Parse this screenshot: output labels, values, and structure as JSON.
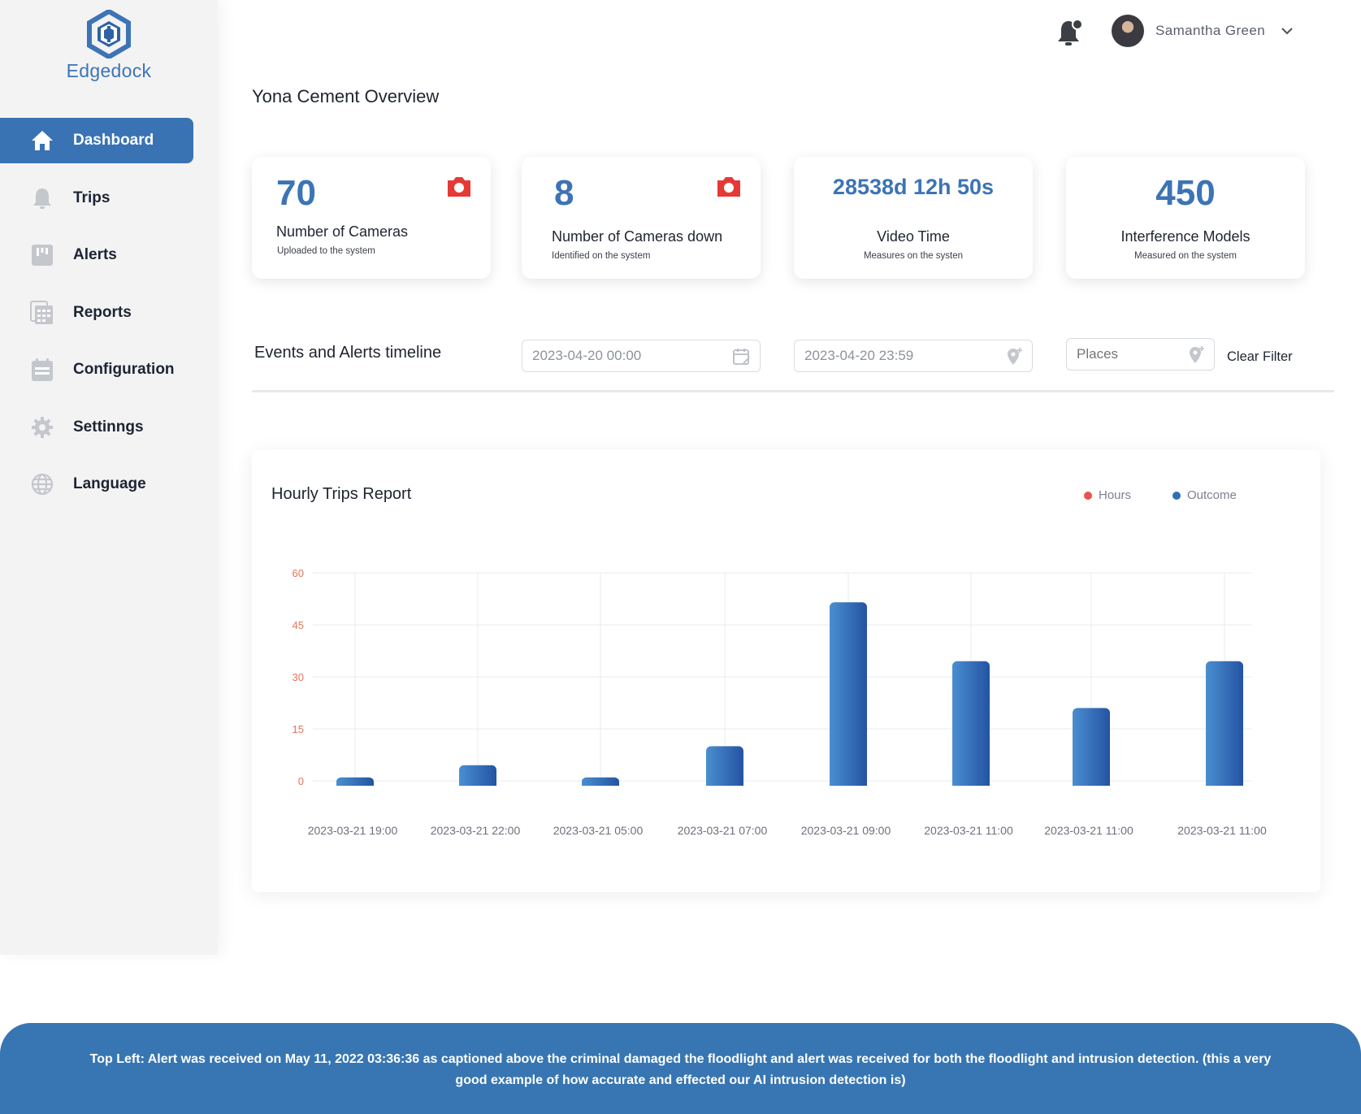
{
  "brand": {
    "name": "Edgedock",
    "accent": "#3a73b4",
    "logo_icon": "edgedock-cube-logo"
  },
  "sidebar": {
    "items": [
      {
        "label": "Dashboard",
        "icon": "home-icon",
        "active": true
      },
      {
        "label": "Trips",
        "icon": "bell-icon",
        "active": false
      },
      {
        "label": "Alerts",
        "icon": "alert-board-icon",
        "active": false
      },
      {
        "label": "Reports",
        "icon": "reports-icon",
        "active": false
      },
      {
        "label": "Configuration",
        "icon": "calendar-config-icon",
        "active": false
      },
      {
        "label": "Settinngs",
        "icon": "gear-icon",
        "active": false
      },
      {
        "label": "Language",
        "icon": "globe-icon",
        "active": false
      }
    ]
  },
  "header": {
    "user_name": "Samantha Green"
  },
  "page": {
    "title": "Yona Cement Overview"
  },
  "stats": [
    {
      "value": "70",
      "label": "Number of Cameras",
      "sub": "Uploaded to the system",
      "icon": "camera-icon"
    },
    {
      "value": "8",
      "label": "Number of Cameras down",
      "sub": "Identified on the system",
      "icon": "camera-icon"
    },
    {
      "value": "28538d 12h 50s",
      "label": "Video Time",
      "sub": "Measures on the systen"
    },
    {
      "value": "450",
      "label": "Interference Models",
      "sub": "Measured on the system"
    }
  ],
  "filters": {
    "title": "Events and Alerts timeline",
    "start_value": "2023-04-20 00:00",
    "end_value": "2023-04-20 23:59",
    "places_placeholder": "Places",
    "clear_label": "Clear Filter"
  },
  "chart_data": {
    "type": "bar",
    "title": "Hourly Trips Report",
    "categories": [
      "2023-03-21 19:00",
      "2023-03-21 22:00",
      "2023-03-21 05:00",
      "2023-03-21 07:00",
      "2023-03-21 09:00",
      "2023-03-21 11:00",
      "2023-03-21 11:00",
      "2023-03-21 11:00"
    ],
    "series": [
      {
        "name": "Outcome",
        "values": [
          1,
          4.5,
          1,
          10,
          51.5,
          34.5,
          21,
          34.5
        ]
      }
    ],
    "legend": [
      "Hours",
      "Outcome"
    ],
    "legend_colors": {
      "Hours": "#e8534b",
      "Outcome": "#2f6fb5"
    },
    "yticks": [
      "0",
      "15",
      "30",
      "45",
      "60"
    ],
    "ylim": [
      0,
      60
    ],
    "xlabel": "",
    "ylabel": ""
  },
  "caption": {
    "text": "Top Left: Alert was received on May 11, 2022 03:36:36 as captioned above the criminal damaged the floodlight and alert was received for both the floodlight and intrusion detection. (this a very good example of how accurate and effected our AI intrusion detection is)"
  }
}
